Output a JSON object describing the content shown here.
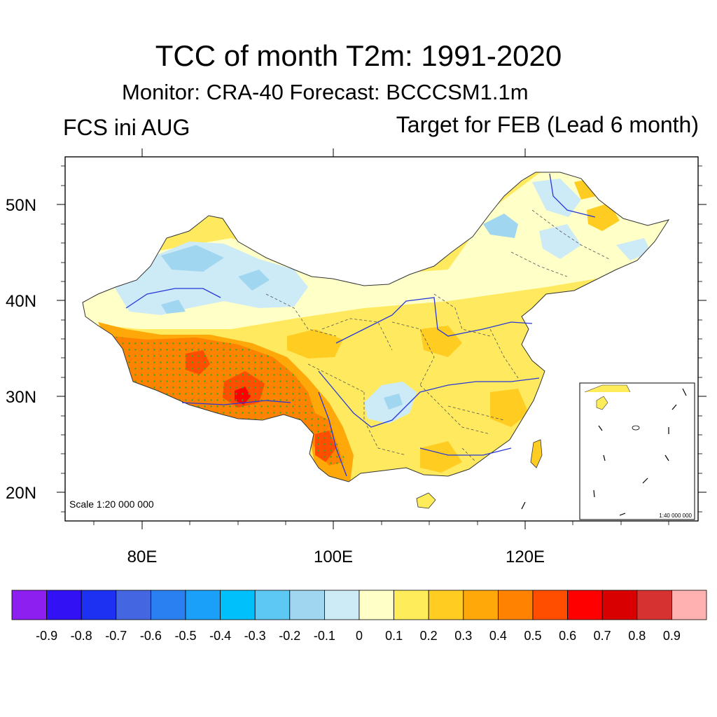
{
  "title": "TCC of month T2m: 1991-2020",
  "subtitle": "Monitor: CRA-40   Forecast: BCCCSM1.1m",
  "left_label": "FCS ini AUG",
  "right_label": "Target for FEB (Lead 6 month)",
  "map": {
    "scale_label": "Scale 1:20 000 000",
    "inset_scale_label": "1:40 000 000",
    "lat_ticks": [
      "50N",
      "40N",
      "30N",
      "20N"
    ],
    "lon_ticks": [
      "80E",
      "100E",
      "120E"
    ]
  },
  "colorbar": {
    "colors": [
      "#8d1ff0",
      "#3212f5",
      "#1c31f2",
      "#4466e0",
      "#2a80f0",
      "#1aa0f8",
      "#00c0fb",
      "#5ec8f4",
      "#a0d6f0",
      "#cdeaf7",
      "#ffffc8",
      "#ffec5a",
      "#ffcc22",
      "#ffa80a",
      "#ff8200",
      "#ff4e00",
      "#ff0000",
      "#d80000",
      "#d63232",
      "#ffb0b0"
    ],
    "labels": [
      "-0.9",
      "-0.8",
      "-0.7",
      "-0.6",
      "-0.5",
      "-0.4",
      "-0.3",
      "-0.2",
      "-0.1",
      "0",
      "0.1",
      "0.2",
      "0.3",
      "0.4",
      "0.5",
      "0.6",
      "0.7",
      "0.8",
      "0.9"
    ]
  }
}
